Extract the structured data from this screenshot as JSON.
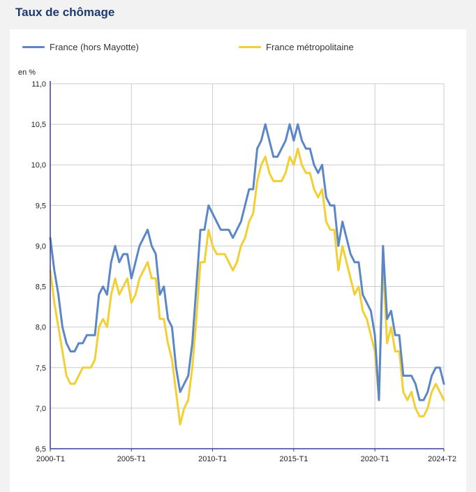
{
  "page": {
    "title": "Taux de chômage"
  },
  "colors": {
    "france": "#5b87c7",
    "metro": "#f2d034",
    "grid": "#cccccc",
    "axis": "#3c3c9e"
  },
  "chart_data": {
    "type": "line",
    "title": "",
    "ylabel": "en %",
    "ylim": [
      6.5,
      11.0
    ],
    "yticks": [
      "6,5",
      "7,0",
      "7,5",
      "8,0",
      "8,5",
      "9,0",
      "9,5",
      "10,0",
      "10,5",
      "11,0"
    ],
    "xticks": [
      "2000-T1",
      "2005-T1",
      "2010-T1",
      "2015-T1",
      "2020-T1",
      "2024-T2"
    ],
    "legend_position": "top",
    "series": [
      {
        "name": "France (hors Mayotte)",
        "color": "#5b87c7",
        "values": [
          9.1,
          8.7,
          8.4,
          8.0,
          7.8,
          7.7,
          7.7,
          7.8,
          7.8,
          7.9,
          7.9,
          7.9,
          8.4,
          8.5,
          8.4,
          8.8,
          9.0,
          8.8,
          8.9,
          8.9,
          8.6,
          8.8,
          9.0,
          9.1,
          9.2,
          9.0,
          8.9,
          8.4,
          8.5,
          8.1,
          8.0,
          7.5,
          7.2,
          7.3,
          7.4,
          7.8,
          8.5,
          9.2,
          9.2,
          9.5,
          9.4,
          9.3,
          9.2,
          9.2,
          9.2,
          9.1,
          9.2,
          9.3,
          9.5,
          9.7,
          9.7,
          10.2,
          10.3,
          10.5,
          10.3,
          10.1,
          10.1,
          10.2,
          10.3,
          10.5,
          10.3,
          10.5,
          10.3,
          10.2,
          10.2,
          10.0,
          9.9,
          10.0,
          9.6,
          9.5,
          9.5,
          9.0,
          9.3,
          9.1,
          8.9,
          8.8,
          8.8,
          8.4,
          8.3,
          8.2,
          7.9,
          7.1,
          9.0,
          8.1,
          8.2,
          7.9,
          7.9,
          7.4,
          7.4,
          7.4,
          7.3,
          7.1,
          7.1,
          7.2,
          7.4,
          7.5,
          7.5,
          7.3
        ]
      },
      {
        "name": "France métropolitaine",
        "color": "#f2d034",
        "values": [
          8.7,
          8.3,
          8.0,
          7.7,
          7.4,
          7.3,
          7.3,
          7.4,
          7.5,
          7.5,
          7.5,
          7.6,
          8.0,
          8.1,
          8.0,
          8.4,
          8.6,
          8.4,
          8.5,
          8.6,
          8.3,
          8.4,
          8.6,
          8.7,
          8.8,
          8.6,
          8.6,
          8.1,
          8.1,
          7.8,
          7.6,
          7.2,
          6.8,
          7.0,
          7.1,
          7.5,
          8.1,
          8.8,
          8.8,
          9.2,
          9.0,
          8.9,
          8.9,
          8.9,
          8.8,
          8.7,
          8.8,
          9.0,
          9.1,
          9.3,
          9.4,
          9.8,
          10.0,
          10.1,
          9.9,
          9.8,
          9.8,
          9.8,
          9.9,
          10.1,
          10.0,
          10.2,
          10.0,
          9.9,
          9.9,
          9.7,
          9.6,
          9.7,
          9.3,
          9.2,
          9.2,
          8.7,
          9.0,
          8.8,
          8.6,
          8.4,
          8.5,
          8.2,
          8.1,
          7.9,
          7.7,
          7.1,
          8.8,
          7.8,
          8.0,
          7.7,
          7.7,
          7.2,
          7.1,
          7.2,
          7.0,
          6.9,
          6.9,
          7.0,
          7.2,
          7.3,
          7.2,
          7.1
        ]
      }
    ]
  }
}
